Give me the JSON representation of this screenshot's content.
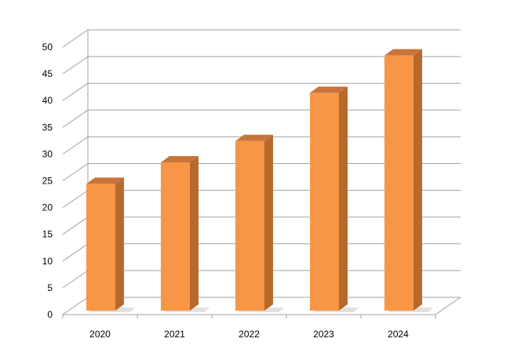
{
  "chart_data": {
    "type": "bar",
    "title": "",
    "xlabel": "",
    "ylabel": "",
    "categories": [
      "2020",
      "2021",
      "2022",
      "2023",
      "2024"
    ],
    "values": [
      24,
      28,
      32,
      41,
      48
    ],
    "ylim": [
      0,
      50
    ],
    "yticks": [
      0,
      5,
      10,
      15,
      20,
      25,
      30,
      35,
      40,
      45,
      50
    ],
    "grid": true,
    "legend": "none",
    "style": "3d-column",
    "colors": {
      "bar_front": "#F79646",
      "bar_side": "#B8692A",
      "bar_top": "#C8743A",
      "grid": "#A0A0A0",
      "shadow": "#D9D9D9"
    }
  }
}
